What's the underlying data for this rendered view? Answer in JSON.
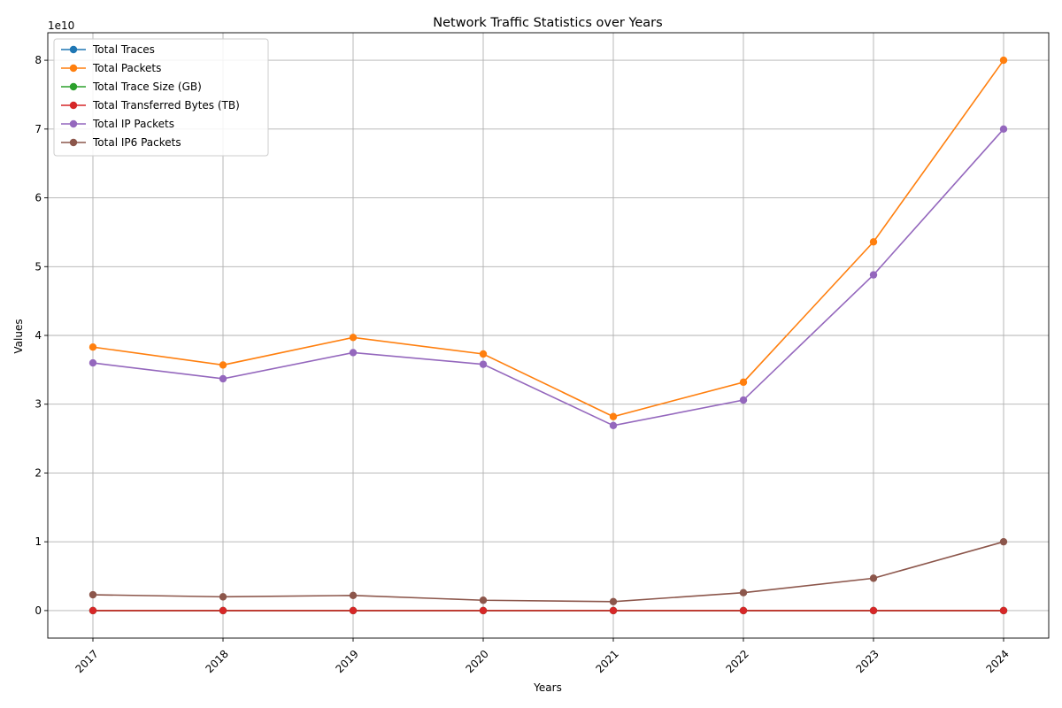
{
  "chart_data": {
    "type": "line",
    "title": "Network Traffic Statistics over Years",
    "xlabel": "Years",
    "ylabel": "Values",
    "y_offset_label": "1e10",
    "x": [
      "2017",
      "2018",
      "2019",
      "2020",
      "2021",
      "2022",
      "2023",
      "2024"
    ],
    "ylim": [
      -4000000000.0,
      84000000000.0
    ],
    "yticks": [
      0,
      10000000000.0,
      20000000000.0,
      30000000000.0,
      40000000000.0,
      50000000000.0,
      60000000000.0,
      70000000000.0,
      80000000000.0
    ],
    "ytick_labels": [
      "0",
      "1",
      "2",
      "3",
      "4",
      "5",
      "6",
      "7",
      "8"
    ],
    "grid": true,
    "legend_position": "upper-left",
    "series": [
      {
        "name": "Total Traces",
        "color": "#1f77b4",
        "values": [
          0,
          0,
          0,
          0,
          0,
          0,
          0,
          0
        ]
      },
      {
        "name": "Total Packets",
        "color": "#ff7f0e",
        "values": [
          38300000000.0,
          35700000000.0,
          39700000000.0,
          37300000000.0,
          28200000000.0,
          33200000000.0,
          53600000000.0,
          80000000000.0
        ]
      },
      {
        "name": "Total Trace Size (GB)",
        "color": "#2ca02c",
        "values": [
          0,
          0,
          0,
          0,
          0,
          0,
          0,
          0
        ]
      },
      {
        "name": "Total Transferred Bytes (TB)",
        "color": "#d62728",
        "values": [
          0,
          0,
          0,
          0,
          0,
          0,
          0,
          0
        ]
      },
      {
        "name": "Total IP Packets",
        "color": "#9467bd",
        "values": [
          36000000000.0,
          33700000000.0,
          37500000000.0,
          35800000000.0,
          26900000000.0,
          30600000000.0,
          48800000000.0,
          70000000000.0
        ]
      },
      {
        "name": "Total IP6 Packets",
        "color": "#8c564b",
        "values": [
          2300000000.0,
          2000000000.0,
          2200000000.0,
          1500000000.0,
          1300000000.0,
          2600000000.0,
          4700000000.0,
          10000000000.0
        ]
      }
    ]
  }
}
